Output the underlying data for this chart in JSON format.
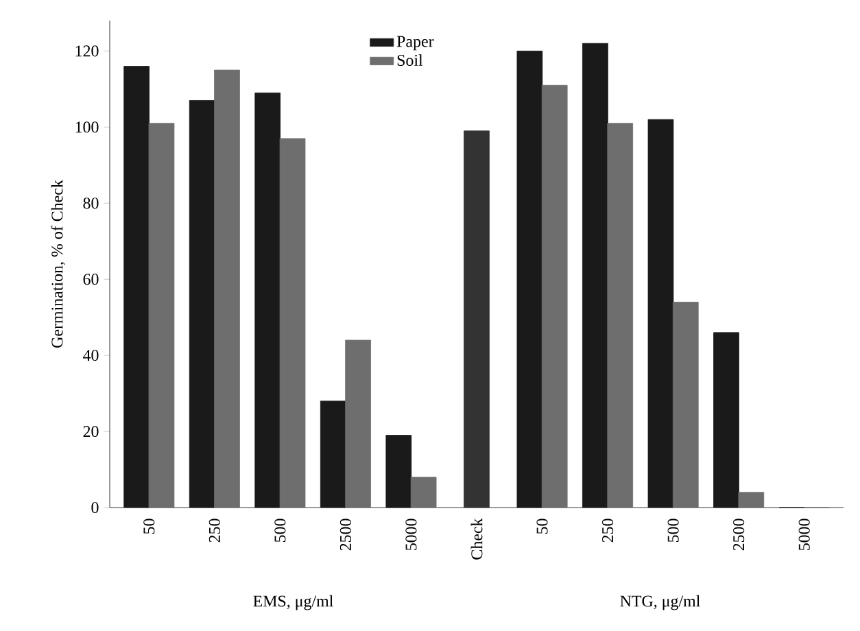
{
  "chart_data": {
    "type": "bar",
    "ylabel": "Germination, % of Check",
    "categories": [
      "50",
      "250",
      "500",
      "2500",
      "5000",
      "Check",
      "50",
      "250",
      "500",
      "2500",
      "5000"
    ],
    "series": [
      {
        "name": "Paper",
        "color": "#1a1a1a",
        "values": [
          116,
          107,
          109,
          28,
          19,
          null,
          120,
          122,
          102,
          46,
          0
        ]
      },
      {
        "name": "Soil",
        "color": "#6e6e6e",
        "values": [
          101,
          115,
          97,
          44,
          8,
          null,
          111,
          101,
          54,
          4,
          0
        ]
      },
      {
        "color": "#333333",
        "values": [
          null,
          null,
          null,
          null,
          null,
          99,
          null,
          null,
          null,
          null,
          null
        ]
      }
    ],
    "ylim": [
      0,
      128
    ],
    "yticks": [
      0,
      20,
      40,
      60,
      80,
      100,
      120
    ],
    "legend": "top",
    "grid": false,
    "annotations": [
      "EMS, μg/ml",
      "NTG, μg/ml"
    ]
  }
}
